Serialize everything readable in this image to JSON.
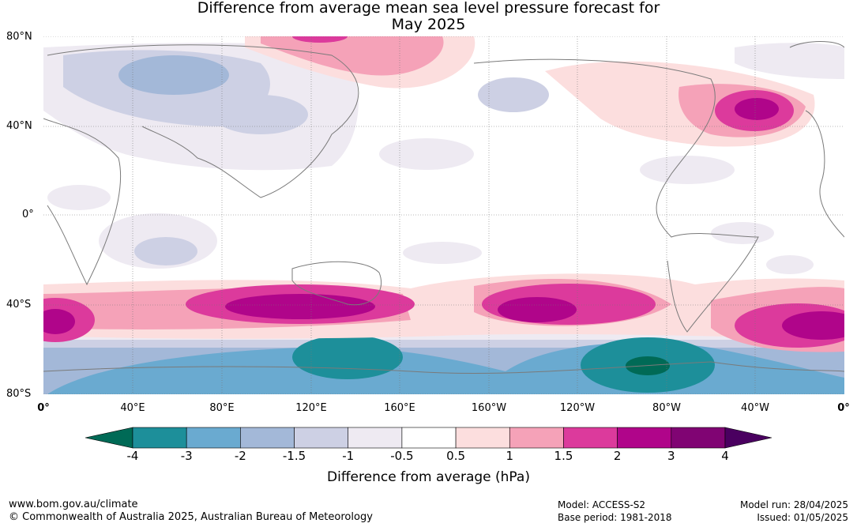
{
  "title_line1": "Difference from average mean sea level pressure forecast for",
  "title_line2": "May 2025",
  "lat_labels": [
    "80°N",
    "40°N",
    "0°",
    "40°S",
    "80°S"
  ],
  "lon_labels": [
    "0°",
    "40°E",
    "80°E",
    "120°E",
    "160°E",
    "160°W",
    "120°W",
    "80°W",
    "40°W",
    "0°"
  ],
  "colorbar": {
    "tick_labels": [
      "-4",
      "-3",
      "-2",
      "-1.5",
      "-1",
      "-0.5",
      "0.5",
      "1",
      "1.5",
      "2",
      "3",
      "4"
    ],
    "colors": [
      "#006a56",
      "#1d8f9a",
      "#6aaad0",
      "#a3b8d8",
      "#cdd0e4",
      "#eeeaf2",
      "#ffffff",
      "#fcdede",
      "#f5a2b8",
      "#dc3a9c",
      "#b0058a",
      "#800473",
      "#4a0060"
    ],
    "title": "Difference from average (hPa)"
  },
  "footer": {
    "url": "www.bom.gov.au/climate",
    "copyright": "© Commonwealth of Australia 2025, Australian Bureau of Meteorology",
    "model": "Model: ACCESS-S2",
    "base_period": "Base period: 1981-2018",
    "model_run": "Model run: 28/04/2025",
    "issued": "Issued: 01/05/2025"
  }
}
